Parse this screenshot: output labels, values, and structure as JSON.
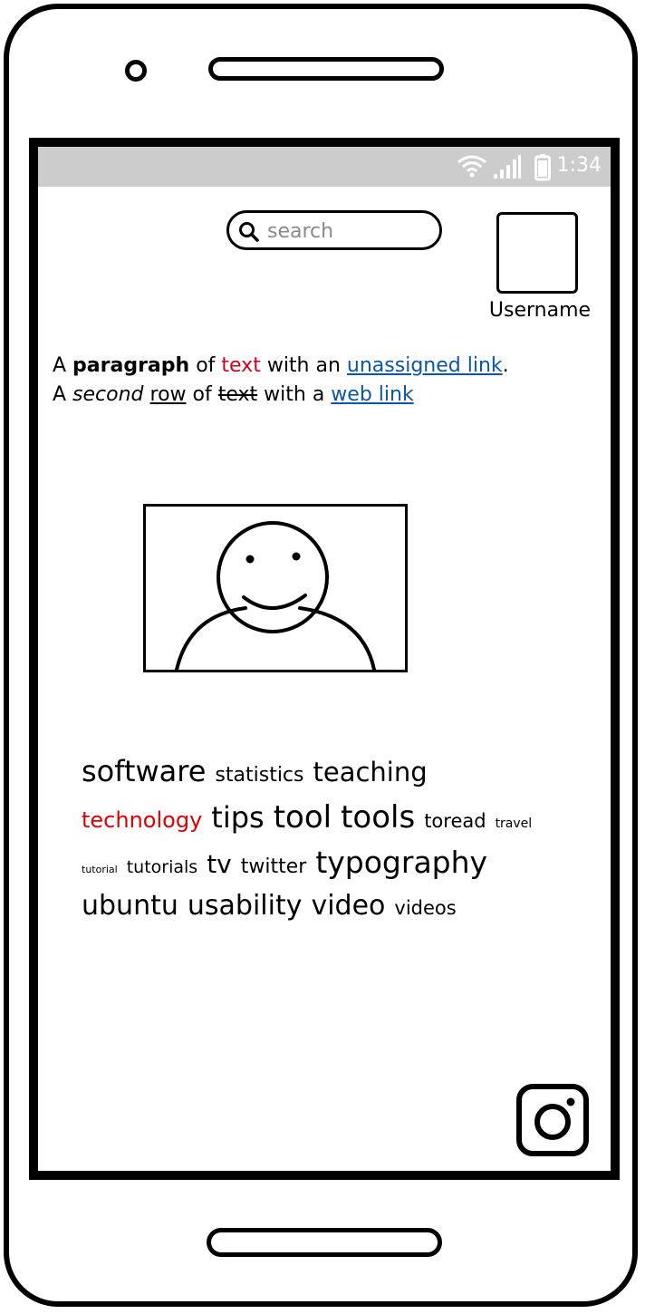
{
  "status_bar": {
    "time": "1:34",
    "icons": [
      "wifi-icon",
      "signal-icon",
      "battery-icon"
    ]
  },
  "search": {
    "placeholder": "search",
    "value": "",
    "icon": "search-icon"
  },
  "profile": {
    "avatar_icon": "avatar-placeholder",
    "username": "Username"
  },
  "paragraph": {
    "line1": {
      "a": "A ",
      "bold": "paragraph",
      "of": " of ",
      "red": "text",
      "with": " with an ",
      "link": "unassigned link",
      "end": "."
    },
    "line2": {
      "a": "A ",
      "italic": "second",
      "sp1": " ",
      "underlined": "row",
      "of": " of ",
      "strike": "text",
      "with": " with a ",
      "link": "web link"
    }
  },
  "image": {
    "icon": "person-smiley-icon"
  },
  "tag_cloud": {
    "rows": [
      [
        {
          "label": "software",
          "size": 32,
          "red": false
        },
        {
          "label": "statistics",
          "size": 22,
          "red": false
        },
        {
          "label": "teaching",
          "size": 29,
          "red": false
        }
      ],
      [
        {
          "label": "technology",
          "size": 24,
          "red": true
        },
        {
          "label": "tips",
          "size": 32,
          "red": false
        },
        {
          "label": "tool",
          "size": 34,
          "red": false
        },
        {
          "label": "tools",
          "size": 34,
          "red": false
        },
        {
          "label": "toread",
          "size": 21,
          "red": false
        },
        {
          "label": "travel",
          "size": 14,
          "red": false
        }
      ],
      [
        {
          "label": "tutorial",
          "size": 11,
          "red": false
        },
        {
          "label": "tutorials",
          "size": 19,
          "red": false
        },
        {
          "label": "tv",
          "size": 28,
          "red": false
        },
        {
          "label": "twitter",
          "size": 22,
          "red": false
        },
        {
          "label": "typography",
          "size": 33,
          "red": false
        }
      ],
      [
        {
          "label": "ubuntu",
          "size": 30,
          "red": false
        },
        {
          "label": "usability",
          "size": 30,
          "red": false
        },
        {
          "label": "video",
          "size": 30,
          "red": false
        },
        {
          "label": "videos",
          "size": 21,
          "red": false
        }
      ]
    ]
  },
  "social": {
    "icon": "instagram-icon"
  },
  "colors": {
    "link": "#0b56a5",
    "red_text": "#d0021b",
    "tag_red": "#e00000",
    "status_bar": "#cccccc"
  }
}
